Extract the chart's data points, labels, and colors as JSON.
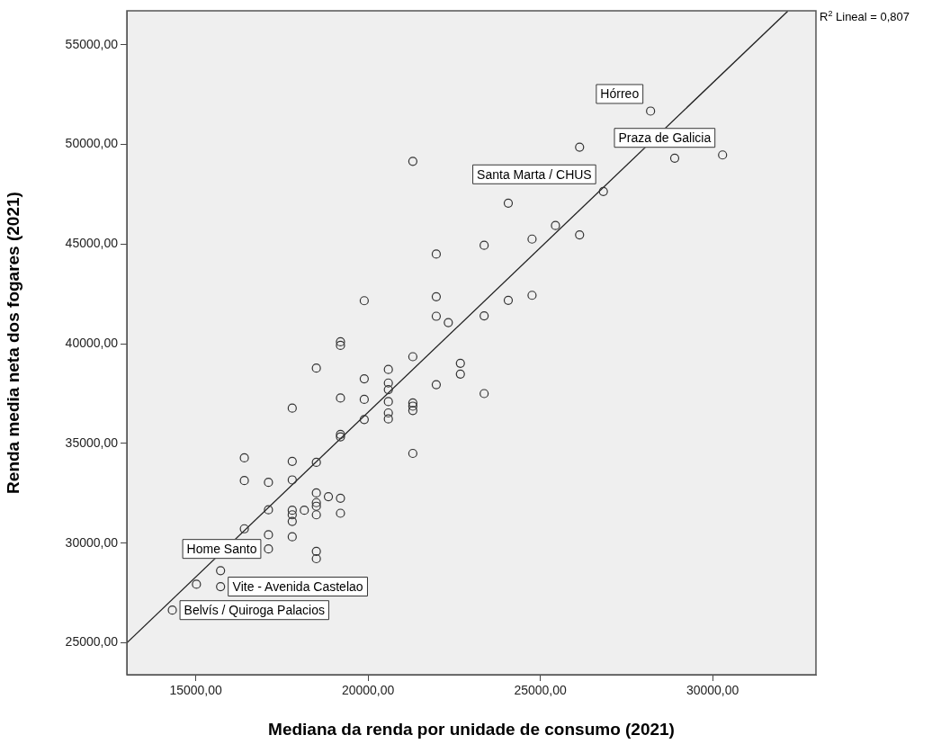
{
  "chart_data": {
    "type": "scatter",
    "xlabel": "Mediana da renda por unidade de consumo (2021)",
    "ylabel": "Renda media neta dos fogares (2021)",
    "xlim": [
      13000,
      33000
    ],
    "xticks": [
      {
        "value": 15000,
        "label": "15000,00"
      },
      {
        "value": 20000,
        "label": "20000,00"
      },
      {
        "value": 25000,
        "label": "25000,00"
      },
      {
        "value": 30000,
        "label": "30000,00"
      }
    ],
    "ylim": [
      23400,
      56700
    ],
    "yticks": [
      {
        "value": 25000,
        "label": "25000,00"
      },
      {
        "value": 30000,
        "label": "30000,00"
      },
      {
        "value": 35000,
        "label": "35000,00"
      },
      {
        "value": 40000,
        "label": "40000,00"
      },
      {
        "value": 45000,
        "label": "45000,00"
      },
      {
        "value": 50000,
        "label": "50000,00"
      },
      {
        "value": 55000,
        "label": "55000,00"
      }
    ],
    "grid": false,
    "legend": false,
    "marker": "circle",
    "series": [
      {
        "color": "#333333",
        "x": [
          21300,
          23370,
          21980,
          19890,
          21980,
          21980,
          22330,
          23370,
          19200,
          19200,
          21300,
          22680,
          28200,
          26140,
          28900,
          30290,
          26830,
          24070,
          25440,
          24760,
          26140,
          24070,
          24760,
          18500,
          20590,
          19890,
          22680,
          21980,
          20590,
          20590,
          19200,
          19890,
          17800,
          20590,
          21300,
          21300,
          21300,
          23370,
          20590,
          20590,
          19890,
          19200,
          19200,
          21300,
          16410,
          17800,
          18500,
          16410,
          17110,
          17800,
          17110,
          16410,
          18500,
          18850,
          19200,
          18150,
          18500,
          18500,
          18500,
          17800,
          17800,
          17800,
          19200,
          17110,
          17800,
          17110,
          18500,
          18500,
          15720,
          15020,
          15720,
          14320
        ],
        "values": [
          49150,
          44940,
          44500,
          42160,
          42360,
          41380,
          41060,
          41400,
          40100,
          39920,
          39350,
          39020,
          51670,
          49860,
          49310,
          49470,
          47640,
          47050,
          45930,
          45250,
          45460,
          42180,
          42430,
          38780,
          38710,
          38240,
          38480,
          37950,
          38030,
          37700,
          37280,
          37210,
          36770,
          37100,
          37030,
          36870,
          36650,
          37500,
          36530,
          36230,
          36200,
          35450,
          35330,
          34500,
          34280,
          34100,
          34050,
          33140,
          33050,
          33170,
          31670,
          30720,
          32520,
          32330,
          32250,
          31650,
          32030,
          31850,
          31420,
          31650,
          31420,
          31090,
          31500,
          30420,
          30320,
          29710,
          29590,
          29220,
          28620,
          27940,
          27820,
          26640
        ]
      },
      {
        "type": "line",
        "marker": "none",
        "color": "#222222",
        "x": [
          13000,
          32180
        ],
        "values": [
          25000,
          56680
        ]
      }
    ],
    "annotations": [
      {
        "text": "Hórreo",
        "x": 28200,
        "y": 51670
      },
      {
        "text": "Praza de Galicia",
        "x": 30290,
        "y": 49470
      },
      {
        "text": "Santa Marta / CHUS",
        "x": 26830,
        "y": 47640
      },
      {
        "text": "Home Santo",
        "x": 17110,
        "y": 29710
      },
      {
        "text": "Vite - Avenida Castelao",
        "x": 15720,
        "y": 27820
      },
      {
        "text": "Belvís / Quiroga Palacios",
        "x": 14320,
        "y": 26640
      },
      "R$^{2}$ Lineal = 0,807"
    ]
  }
}
